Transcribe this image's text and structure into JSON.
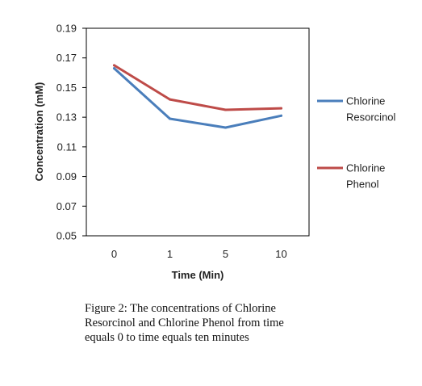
{
  "chart_data": {
    "type": "line",
    "x": [
      "0",
      "1",
      "5",
      "10"
    ],
    "series": [
      {
        "name": "Chlorine Resorcinol",
        "values": [
          0.163,
          0.129,
          0.123,
          0.131
        ],
        "color": "#4a7ebb"
      },
      {
        "name": "Chlorine Phenol",
        "values": [
          0.165,
          0.142,
          0.135,
          0.136
        ],
        "color": "#be4b48"
      }
    ],
    "yticks": [
      "0.05",
      "0.07",
      "0.09",
      "0.11",
      "0.13",
      "0.15",
      "0.17",
      "0.19"
    ],
    "ylim": [
      0.05,
      0.19
    ],
    "xlabel": "Time (Min)",
    "ylabel": "Concentration (mM)",
    "legend_position": "right",
    "grid": false
  },
  "caption": "Figure 2: The concentrations of Chlorine Resorcinol and Chlorine Phenol from time equals 0 to time equals ten minutes"
}
